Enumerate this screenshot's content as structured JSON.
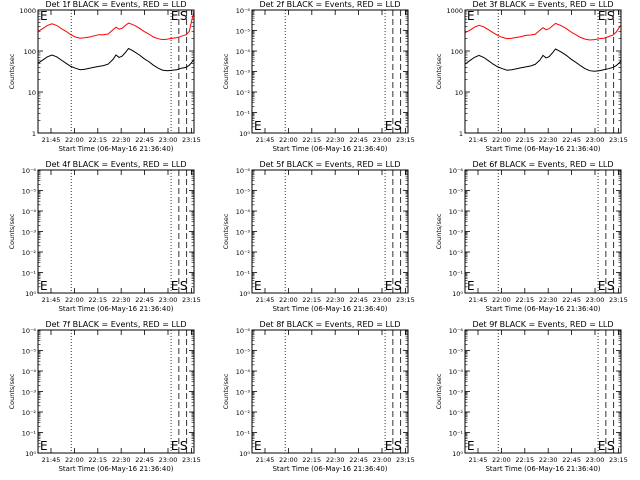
{
  "chart_data": [
    {
      "type": "line",
      "title": "Det 1f BLACK = Events, RED = LLD",
      "xlabel": "Start Time (06-May-16 21:36:40)",
      "ylabel": "Counts/sec",
      "x_ticks": [
        "21:45",
        "22:00",
        "22:15",
        "22:30",
        "22:45",
        "23:00",
        "23:15"
      ],
      "y_scale": "log",
      "y_ticks": [
        "1",
        "10",
        "100",
        "1000"
      ],
      "ylim": [
        1,
        1000
      ],
      "xlim_minutes_after_start": [
        0,
        100
      ],
      "markers": {
        "E": "E",
        "S": "S"
      },
      "dotted_lines_min": [
        21.3,
        85.3
      ],
      "dashed_lines_min": [
        90.3,
        95.3
      ],
      "series": [
        {
          "color": "#ff0000",
          "points": [
            [
              0,
              300
            ],
            [
              3,
              350
            ],
            [
              6,
              420
            ],
            [
              9,
              460
            ],
            [
              12,
              420
            ],
            [
              15,
              350
            ],
            [
              18,
              300
            ],
            [
              21,
              250
            ],
            [
              24,
              220
            ],
            [
              27,
              205
            ],
            [
              30,
              210
            ],
            [
              33,
              220
            ],
            [
              36,
              235
            ],
            [
              39,
              250
            ],
            [
              42,
              250
            ],
            [
              45,
              260
            ],
            [
              48,
              330
            ],
            [
              50,
              380
            ],
            [
              52,
              340
            ],
            [
              54,
              360
            ],
            [
              56,
              420
            ],
            [
              58,
              480
            ],
            [
              60,
              450
            ],
            [
              62,
              420
            ],
            [
              65,
              360
            ],
            [
              68,
              300
            ],
            [
              71,
              260
            ],
            [
              74,
              220
            ],
            [
              77,
              200
            ],
            [
              80,
              190
            ],
            [
              83,
              195
            ],
            [
              86,
              205
            ],
            [
              89,
              210
            ],
            [
              92,
              230
            ],
            [
              95,
              250
            ],
            [
              97,
              300
            ],
            [
              99,
              650
            ],
            [
              100,
              900
            ]
          ]
        },
        {
          "color": "#000000",
          "points": [
            [
              0,
              50
            ],
            [
              3,
              60
            ],
            [
              6,
              72
            ],
            [
              9,
              80
            ],
            [
              12,
              72
            ],
            [
              15,
              60
            ],
            [
              18,
              50
            ],
            [
              21,
              42
            ],
            [
              24,
              38
            ],
            [
              27,
              35
            ],
            [
              30,
              36
            ],
            [
              33,
              38
            ],
            [
              36,
              40
            ],
            [
              39,
              42
            ],
            [
              42,
              44
            ],
            [
              45,
              48
            ],
            [
              48,
              62
            ],
            [
              50,
              80
            ],
            [
              52,
              70
            ],
            [
              54,
              75
            ],
            [
              56,
              92
            ],
            [
              58,
              115
            ],
            [
              60,
              105
            ],
            [
              62,
              95
            ],
            [
              65,
              80
            ],
            [
              68,
              65
            ],
            [
              71,
              55
            ],
            [
              74,
              45
            ],
            [
              77,
              38
            ],
            [
              80,
              34
            ],
            [
              83,
              33
            ],
            [
              86,
              34
            ],
            [
              89,
              35
            ],
            [
              92,
              38
            ],
            [
              95,
              40
            ],
            [
              97,
              45
            ],
            [
              99,
              55
            ],
            [
              100,
              62
            ]
          ]
        }
      ]
    },
    {
      "type": "line",
      "title": "Det 2f BLACK = Events, RED = LLD",
      "xlabel": "Start Time (06-May-16 21:36:40)",
      "ylabel": "Counts/sec",
      "x_ticks": [
        "21:45",
        "22:00",
        "22:15",
        "22:30",
        "22:45",
        "23:00",
        "23:15"
      ],
      "y_scale": "log",
      "y_ticks": [
        "10⁰",
        "10⁻¹",
        "10⁻²",
        "10⁻³",
        "10⁻⁴",
        "10⁻⁵",
        "10⁻⁶"
      ],
      "markers": {
        "E": "E",
        "S": "S"
      },
      "dotted_lines_min": [
        21.3,
        85.3
      ],
      "dashed_lines_min": [
        90.3,
        95.3
      ],
      "series": []
    },
    {
      "type": "line",
      "title": "Det 3f BLACK = Events, RED = LLD",
      "xlabel": "Start Time (06-May-16 21:36:40)",
      "ylabel": "Counts/sec",
      "x_ticks": [
        "21:45",
        "22:00",
        "22:15",
        "22:30",
        "22:45",
        "23:00",
        "23:15"
      ],
      "y_scale": "log",
      "y_ticks": [
        "1",
        "10",
        "100",
        "1000"
      ],
      "ylim": [
        1,
        1000
      ],
      "xlim_minutes_after_start": [
        0,
        100
      ],
      "markers": {
        "E": "E",
        "S": "S"
      },
      "dotted_lines_min": [
        21.3,
        85.3
      ],
      "dashed_lines_min": [
        90.3,
        95.3
      ],
      "series": [
        {
          "color": "#ff0000",
          "points": [
            [
              0,
              280
            ],
            [
              3,
              320
            ],
            [
              6,
              380
            ],
            [
              9,
              420
            ],
            [
              12,
              390
            ],
            [
              15,
              330
            ],
            [
              18,
              280
            ],
            [
              21,
              240
            ],
            [
              24,
              215
            ],
            [
              27,
              200
            ],
            [
              30,
              205
            ],
            [
              33,
              215
            ],
            [
              36,
              225
            ],
            [
              39,
              240
            ],
            [
              42,
              245
            ],
            [
              45,
              255
            ],
            [
              48,
              320
            ],
            [
              50,
              370
            ],
            [
              52,
              330
            ],
            [
              54,
              350
            ],
            [
              56,
              410
            ],
            [
              58,
              470
            ],
            [
              60,
              440
            ],
            [
              62,
              410
            ],
            [
              65,
              350
            ],
            [
              68,
              290
            ],
            [
              71,
              250
            ],
            [
              74,
              215
            ],
            [
              77,
              195
            ],
            [
              80,
              185
            ],
            [
              83,
              190
            ],
            [
              86,
              200
            ],
            [
              89,
              205
            ],
            [
              92,
              225
            ],
            [
              95,
              245
            ],
            [
              97,
              290
            ],
            [
              99,
              380
            ],
            [
              100,
              430
            ]
          ]
        },
        {
          "color": "#000000",
          "points": [
            [
              0,
              48
            ],
            [
              3,
              58
            ],
            [
              6,
              70
            ],
            [
              9,
              78
            ],
            [
              12,
              70
            ],
            [
              15,
              58
            ],
            [
              18,
              48
            ],
            [
              21,
              41
            ],
            [
              24,
              37
            ],
            [
              27,
              34
            ],
            [
              30,
              35
            ],
            [
              33,
              37
            ],
            [
              36,
              39
            ],
            [
              39,
              41
            ],
            [
              42,
              43
            ],
            [
              45,
              47
            ],
            [
              48,
              60
            ],
            [
              50,
              78
            ],
            [
              52,
              68
            ],
            [
              54,
              73
            ],
            [
              56,
              90
            ],
            [
              58,
              112
            ],
            [
              60,
              102
            ],
            [
              62,
              93
            ],
            [
              65,
              78
            ],
            [
              68,
              63
            ],
            [
              71,
              53
            ],
            [
              74,
              44
            ],
            [
              77,
              37
            ],
            [
              80,
              33
            ],
            [
              83,
              32
            ],
            [
              86,
              33
            ],
            [
              89,
              35
            ],
            [
              92,
              37
            ],
            [
              95,
              40
            ],
            [
              97,
              44
            ],
            [
              99,
              52
            ],
            [
              100,
              58
            ]
          ]
        }
      ]
    },
    {
      "type": "line",
      "title": "Det 4f BLACK = Events, RED = LLD",
      "xlabel": "Start Time (06-May-16 21:36:40)",
      "ylabel": "Counts/sec",
      "x_ticks": [
        "21:45",
        "22:00",
        "22:15",
        "22:30",
        "22:45",
        "23:00",
        "23:15"
      ],
      "y_scale": "log",
      "y_ticks": [
        "10⁰",
        "10⁻¹",
        "10⁻²",
        "10⁻³",
        "10⁻⁴",
        "10⁻⁵",
        "10⁻⁶"
      ],
      "markers": {
        "E": "E",
        "S": "S"
      },
      "dotted_lines_min": [
        21.3,
        85.3
      ],
      "dashed_lines_min": [
        90.3,
        95.3
      ],
      "series": []
    },
    {
      "type": "line",
      "title": "Det 5f BLACK = Events, RED = LLD",
      "xlabel": "Start Time (06-May-16 21:36:40)",
      "ylabel": "Counts/sec",
      "x_ticks": [
        "21:45",
        "22:00",
        "22:15",
        "22:30",
        "22:45",
        "23:00",
        "23:15"
      ],
      "y_scale": "log",
      "y_ticks": [
        "10⁰",
        "10⁻¹",
        "10⁻²",
        "10⁻³",
        "10⁻⁴",
        "10⁻⁵",
        "10⁻⁶"
      ],
      "markers": {
        "E": "E",
        "S": "S"
      },
      "dotted_lines_min": [
        21.3,
        85.3
      ],
      "dashed_lines_min": [
        90.3,
        95.3
      ],
      "series": []
    },
    {
      "type": "line",
      "title": "Det 6f BLACK = Events, RED = LLD",
      "xlabel": "Start Time (06-May-16 21:36:40)",
      "ylabel": "Counts/sec",
      "x_ticks": [
        "21:45",
        "22:00",
        "22:15",
        "22:30",
        "22:45",
        "23:00",
        "23:15"
      ],
      "y_scale": "log",
      "y_ticks": [
        "10⁰",
        "10⁻¹",
        "10⁻²",
        "10⁻³",
        "10⁻⁴",
        "10⁻⁵",
        "10⁻⁶"
      ],
      "markers": {
        "E": "E",
        "S": "S"
      },
      "dotted_lines_min": [
        21.3,
        85.3
      ],
      "dashed_lines_min": [
        90.3,
        95.3
      ],
      "series": []
    },
    {
      "type": "line",
      "title": "Det 7f BLACK = Events, RED = LLD",
      "xlabel": "Start Time (06-May-16 21:36:40)",
      "ylabel": "Counts/sec",
      "x_ticks": [
        "21:45",
        "22:00",
        "22:15",
        "22:30",
        "22:45",
        "23:00",
        "23:15"
      ],
      "y_scale": "log",
      "y_ticks": [
        "10⁰",
        "10⁻¹",
        "10⁻²",
        "10⁻³",
        "10⁻⁴",
        "10⁻⁵",
        "10⁻⁶"
      ],
      "markers": {
        "E": "E",
        "S": "S"
      },
      "dotted_lines_min": [
        21.3,
        85.3
      ],
      "dashed_lines_min": [
        90.3,
        95.3
      ],
      "series": []
    },
    {
      "type": "line",
      "title": "Det 8f BLACK = Events, RED = LLD",
      "xlabel": "Start Time (06-May-16 21:36:40)",
      "ylabel": "Counts/sec",
      "x_ticks": [
        "21:45",
        "22:00",
        "22:15",
        "22:30",
        "22:45",
        "23:00",
        "23:15"
      ],
      "y_scale": "log",
      "y_ticks": [
        "10⁰",
        "10⁻¹",
        "10⁻²",
        "10⁻³",
        "10⁻⁴",
        "10⁻⁵",
        "10⁻⁶"
      ],
      "markers": {
        "E": "E",
        "S": "S"
      },
      "dotted_lines_min": [
        21.3,
        85.3
      ],
      "dashed_lines_min": [
        90.3,
        95.3
      ],
      "series": []
    },
    {
      "type": "line",
      "title": "Det 9f BLACK = Events, RED = LLD",
      "xlabel": "Start Time (06-May-16 21:36:40)",
      "ylabel": "Counts/sec",
      "x_ticks": [
        "21:45",
        "22:00",
        "22:15",
        "22:30",
        "22:45",
        "23:00",
        "23:15"
      ],
      "y_scale": "log",
      "y_ticks": [
        "10⁰",
        "10⁻¹",
        "10⁻²",
        "10⁻³",
        "10⁻⁴",
        "10⁻⁵",
        "10⁻⁶"
      ],
      "markers": {
        "E": "E",
        "S": "S"
      },
      "dotted_lines_min": [
        21.3,
        85.3
      ],
      "dashed_lines_min": [
        90.3,
        95.3
      ],
      "series": []
    }
  ]
}
